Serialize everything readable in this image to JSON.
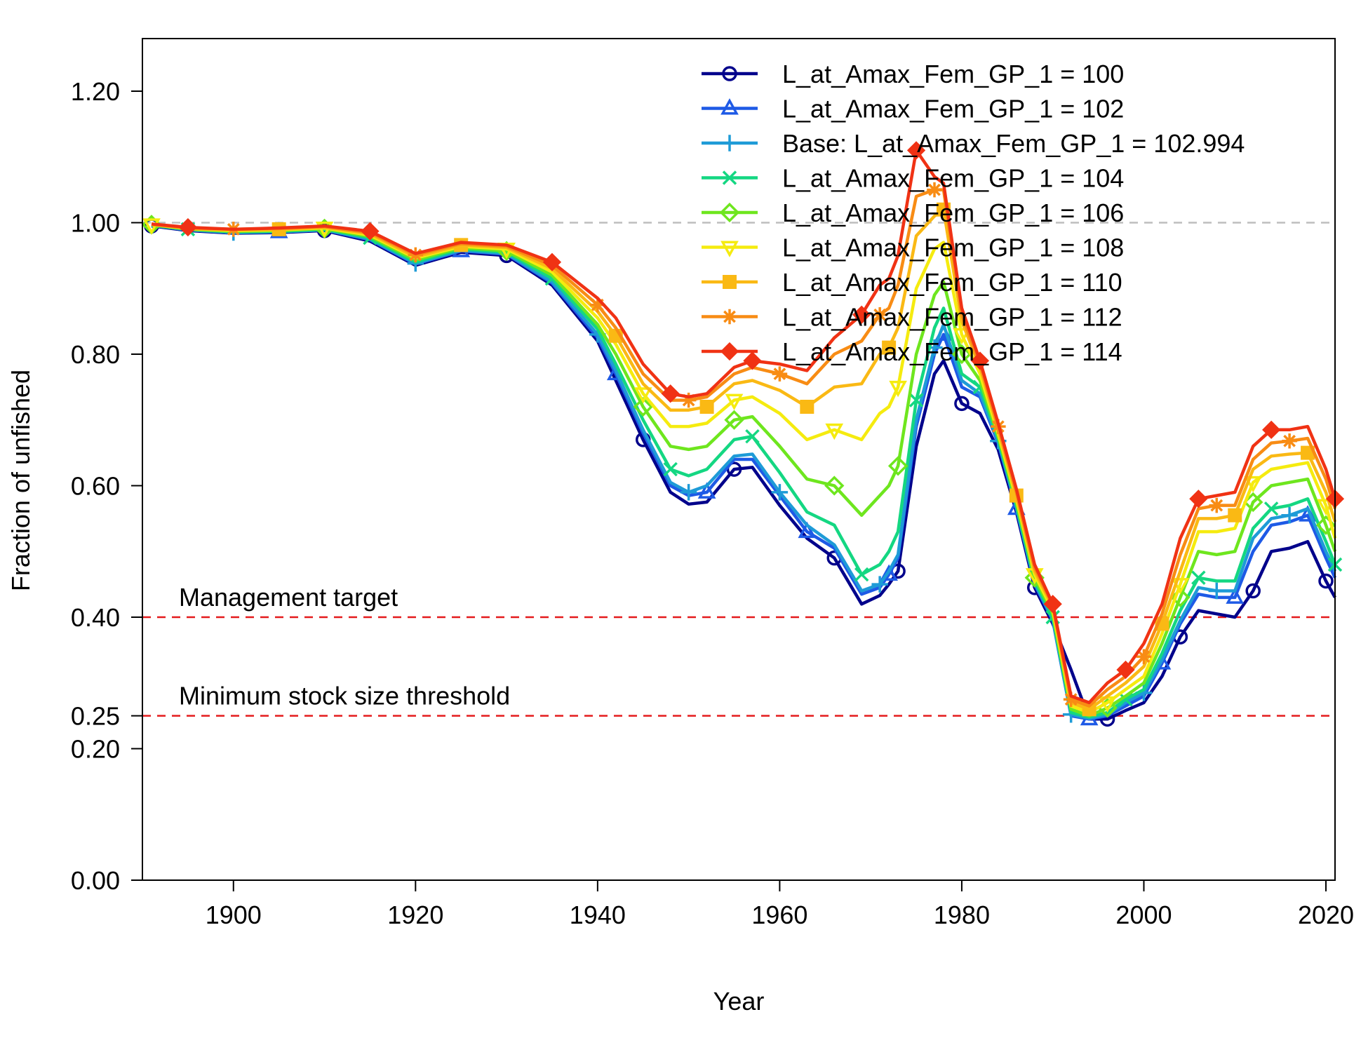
{
  "chart_data": {
    "type": "line",
    "xlabel": "Year",
    "ylabel": "Fraction of unfished",
    "xlim": [
      1890,
      2021
    ],
    "ylim": [
      0,
      1.28
    ],
    "x_ticks": [
      1900,
      1920,
      1940,
      1960,
      1980,
      2000,
      2020
    ],
    "y_ticks": [
      0.0,
      0.2,
      0.25,
      0.4,
      0.6,
      0.8,
      1.0,
      1.2
    ],
    "y_tick_labels": [
      "0.00",
      "0.20",
      "0.25",
      "0.40",
      "0.60",
      "0.80",
      "1.00",
      "1.20"
    ],
    "legend_position": "top-right",
    "reference_lines": [
      {
        "y": 1.0,
        "color": "#bdbdbd",
        "label": ""
      },
      {
        "y": 0.4,
        "color": "#e41a1c",
        "label": "Management target"
      },
      {
        "y": 0.25,
        "color": "#e41a1c",
        "label": "Minimum stock size threshold"
      }
    ],
    "x": [
      1891,
      1895,
      1900,
      1905,
      1910,
      1915,
      1920,
      1925,
      1930,
      1935,
      1940,
      1942,
      1945,
      1948,
      1950,
      1952,
      1955,
      1957,
      1960,
      1963,
      1966,
      1969,
      1971,
      1972,
      1973,
      1975,
      1977,
      1978,
      1980,
      1982,
      1984,
      1986,
      1988,
      1990,
      1992,
      1994,
      1996,
      1998,
      2000,
      2002,
      2004,
      2006,
      2008,
      2010,
      2012,
      2014,
      2016,
      2018,
      2020,
      2021
    ],
    "series": [
      {
        "name": "L_at_Amax_Fem_GP_1 = 100",
        "color": "#00008b",
        "marker": "circle",
        "values": [
          0.995,
          0.988,
          0.984,
          0.985,
          0.988,
          0.972,
          0.935,
          0.955,
          0.95,
          0.905,
          0.82,
          0.76,
          0.67,
          0.59,
          0.572,
          0.575,
          0.625,
          0.628,
          0.57,
          0.52,
          0.49,
          0.42,
          0.433,
          0.45,
          0.47,
          0.66,
          0.77,
          0.79,
          0.725,
          0.71,
          0.655,
          0.56,
          0.445,
          0.39,
          0.32,
          0.245,
          0.245,
          0.258,
          0.27,
          0.31,
          0.37,
          0.41,
          0.405,
          0.4,
          0.44,
          0.5,
          0.505,
          0.515,
          0.455,
          0.43
        ]
      },
      {
        "name": "L_at_Amax_Fem_GP_1 = 102",
        "color": "#1e5ae6",
        "marker": "triangle",
        "values": [
          0.996,
          0.989,
          0.985,
          0.986,
          0.989,
          0.974,
          0.937,
          0.957,
          0.952,
          0.908,
          0.825,
          0.77,
          0.68,
          0.6,
          0.585,
          0.59,
          0.64,
          0.64,
          0.585,
          0.53,
          0.505,
          0.435,
          0.445,
          0.465,
          0.49,
          0.69,
          0.8,
          0.83,
          0.75,
          0.735,
          0.665,
          0.565,
          0.45,
          0.395,
          0.25,
          0.245,
          0.25,
          0.265,
          0.28,
          0.33,
          0.39,
          0.435,
          0.43,
          0.43,
          0.5,
          0.54,
          0.545,
          0.555,
          0.49,
          0.46
        ]
      },
      {
        "name": "Base: L_at_Amax_Fem_GP_1 = 102.994",
        "color": "#1e9bd7",
        "marker": "plus",
        "values": [
          0.996,
          0.989,
          0.985,
          0.986,
          0.989,
          0.975,
          0.938,
          0.958,
          0.953,
          0.91,
          0.83,
          0.775,
          0.685,
          0.605,
          0.59,
          0.6,
          0.645,
          0.648,
          0.59,
          0.54,
          0.51,
          0.44,
          0.45,
          0.47,
          0.495,
          0.7,
          0.81,
          0.845,
          0.76,
          0.74,
          0.668,
          0.567,
          0.452,
          0.397,
          0.252,
          0.246,
          0.252,
          0.27,
          0.285,
          0.335,
          0.395,
          0.445,
          0.44,
          0.44,
          0.52,
          0.55,
          0.555,
          0.565,
          0.5,
          0.47
        ]
      },
      {
        "name": "L_at_Amax_Fem_GP_1 = 104",
        "color": "#14d782",
        "marker": "x",
        "values": [
          0.996,
          0.99,
          0.986,
          0.987,
          0.99,
          0.977,
          0.94,
          0.96,
          0.955,
          0.915,
          0.838,
          0.785,
          0.7,
          0.625,
          0.615,
          0.625,
          0.67,
          0.675,
          0.62,
          0.56,
          0.54,
          0.465,
          0.48,
          0.5,
          0.53,
          0.73,
          0.84,
          0.87,
          0.77,
          0.75,
          0.672,
          0.57,
          0.455,
          0.4,
          0.255,
          0.248,
          0.255,
          0.275,
          0.29,
          0.345,
          0.41,
          0.46,
          0.455,
          0.455,
          0.535,
          0.565,
          0.57,
          0.58,
          0.515,
          0.48
        ]
      },
      {
        "name": "L_at_Amax_Fem_GP_1 = 106",
        "color": "#6ee61e",
        "marker": "diamond-open",
        "values": [
          0.997,
          0.99,
          0.987,
          0.988,
          0.991,
          0.979,
          0.943,
          0.962,
          0.957,
          0.92,
          0.845,
          0.8,
          0.72,
          0.66,
          0.655,
          0.66,
          0.7,
          0.705,
          0.66,
          0.61,
          0.6,
          0.555,
          0.585,
          0.6,
          0.63,
          0.8,
          0.89,
          0.91,
          0.8,
          0.76,
          0.675,
          0.575,
          0.46,
          0.405,
          0.26,
          0.25,
          0.262,
          0.28,
          0.3,
          0.36,
          0.43,
          0.5,
          0.495,
          0.5,
          0.575,
          0.6,
          0.605,
          0.61,
          0.54,
          0.5
        ]
      },
      {
        "name": "L_at_Amax_Fem_GP_1 = 108",
        "color": "#f5eb0f",
        "marker": "triangle-down",
        "values": [
          0.997,
          0.991,
          0.988,
          0.989,
          0.992,
          0.981,
          0.946,
          0.964,
          0.96,
          0.925,
          0.855,
          0.815,
          0.74,
          0.69,
          0.69,
          0.695,
          0.73,
          0.735,
          0.71,
          0.67,
          0.685,
          0.67,
          0.71,
          0.72,
          0.75,
          0.9,
          0.96,
          0.97,
          0.83,
          0.77,
          0.68,
          0.58,
          0.465,
          0.41,
          0.265,
          0.255,
          0.27,
          0.29,
          0.31,
          0.375,
          0.45,
          0.53,
          0.53,
          0.535,
          0.605,
          0.625,
          0.63,
          0.635,
          0.57,
          0.52
        ]
      },
      {
        "name": "L_at_Amax_Fem_GP_1 = 110",
        "color": "#fab914",
        "marker": "square",
        "values": [
          0.997,
          0.991,
          0.989,
          0.99,
          0.993,
          0.983,
          0.948,
          0.966,
          0.962,
          0.93,
          0.865,
          0.828,
          0.755,
          0.715,
          0.715,
          0.72,
          0.755,
          0.76,
          0.745,
          0.72,
          0.75,
          0.755,
          0.8,
          0.81,
          0.84,
          0.98,
          1.01,
          1.02,
          0.85,
          0.78,
          0.685,
          0.585,
          0.47,
          0.415,
          0.27,
          0.26,
          0.28,
          0.3,
          0.325,
          0.39,
          0.47,
          0.55,
          0.55,
          0.555,
          0.625,
          0.645,
          0.648,
          0.65,
          0.59,
          0.545
        ]
      },
      {
        "name": "L_at_Amax_Fem_GP_1 = 112",
        "color": "#f88c14",
        "marker": "asterisk",
        "values": [
          0.998,
          0.992,
          0.99,
          0.991,
          0.994,
          0.985,
          0.951,
          0.968,
          0.964,
          0.935,
          0.875,
          0.84,
          0.77,
          0.73,
          0.73,
          0.735,
          0.77,
          0.78,
          0.77,
          0.755,
          0.8,
          0.82,
          0.86,
          0.87,
          0.905,
          1.04,
          1.05,
          1.05,
          0.86,
          0.785,
          0.69,
          0.59,
          0.475,
          0.418,
          0.275,
          0.265,
          0.29,
          0.31,
          0.34,
          0.405,
          0.495,
          0.565,
          0.57,
          0.57,
          0.64,
          0.665,
          0.668,
          0.672,
          0.61,
          0.565
        ]
      },
      {
        "name": "L_at_Amax_Fem_GP_1 = 114",
        "color": "#f03214",
        "marker": "diamond",
        "values": [
          0.998,
          0.993,
          0.99,
          0.992,
          0.995,
          0.987,
          0.953,
          0.97,
          0.966,
          0.94,
          0.885,
          0.855,
          0.785,
          0.74,
          0.735,
          0.74,
          0.78,
          0.79,
          0.785,
          0.775,
          0.825,
          0.86,
          0.905,
          0.915,
          0.95,
          1.11,
          1.07,
          1.06,
          0.87,
          0.79,
          0.695,
          0.595,
          0.48,
          0.42,
          0.28,
          0.27,
          0.3,
          0.32,
          0.36,
          0.42,
          0.52,
          0.58,
          0.585,
          0.59,
          0.66,
          0.685,
          0.685,
          0.69,
          0.625,
          0.58
        ]
      }
    ]
  }
}
